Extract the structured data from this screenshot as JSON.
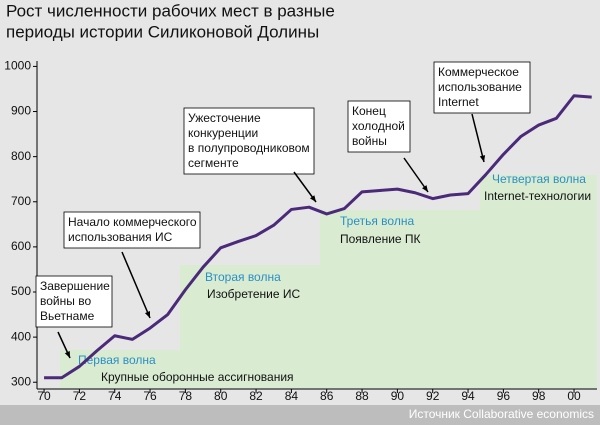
{
  "chart_data": {
    "type": "line",
    "title": [
      "Рост численности рабочих мест в разные",
      "периоды истории Силиконовой Долины"
    ],
    "x": [
      1970,
      1971,
      1972,
      1973,
      1974,
      1975,
      1976,
      1977,
      1978,
      1979,
      1980,
      1981,
      1982,
      1983,
      1984,
      1985,
      1986,
      1987,
      1988,
      1989,
      1990,
      1991,
      1992,
      1993,
      1994,
      1995,
      1996,
      1997,
      1998,
      1999,
      2000,
      2001
    ],
    "series": [
      {
        "color": "#4b2a7a",
        "values": [
          310,
          310,
          335,
          370,
          403,
          395,
          420,
          450,
          505,
          555,
          598,
          612,
          625,
          648,
          683,
          688,
          673,
          685,
          722,
          725,
          728,
          720,
          707,
          715,
          718,
          760,
          805,
          845,
          870,
          885,
          935,
          932
        ]
      }
    ],
    "xlim": [
      1969.6,
      2001.3
    ],
    "ylim": [
      285,
      1012
    ],
    "xticks": [
      {
        "value": 1970,
        "label": "70"
      },
      {
        "value": 1972,
        "label": "72"
      },
      {
        "value": 1974,
        "label": "74"
      },
      {
        "value": 1976,
        "label": "76"
      },
      {
        "value": 1978,
        "label": "78"
      },
      {
        "value": 1980,
        "label": "80"
      },
      {
        "value": 1982,
        "label": "82"
      },
      {
        "value": 1984,
        "label": "84"
      },
      {
        "value": 1986,
        "label": "86"
      },
      {
        "value": 1988,
        "label": "88"
      },
      {
        "value": 1990,
        "label": "90"
      },
      {
        "value": 1992,
        "label": "92"
      },
      {
        "value": 1994,
        "label": "94"
      },
      {
        "value": 1996,
        "label": "96"
      },
      {
        "value": 1998,
        "label": "98"
      },
      {
        "value": 2000,
        "label": "00"
      }
    ],
    "yticks": [
      300,
      400,
      500,
      600,
      700,
      800,
      900,
      1000
    ],
    "annotations": [
      {
        "lines": [
          "Завершение",
          "войны во",
          "Вьетнаме"
        ]
      },
      {
        "lines": [
          "Начало коммерческого",
          "использования ИС"
        ]
      },
      {
        "lines": [
          "Ужесточение",
          "конкуренции",
          "в полупроводниковом",
          "сегменте"
        ]
      },
      {
        "lines": [
          "Конец",
          "холодной",
          "войны"
        ]
      },
      {
        "lines": [
          "Коммерческое",
          "использование",
          "Internet"
        ]
      }
    ],
    "waves": [
      {
        "name": "Первая волна",
        "description": "Крупные оборонные ассигнования"
      },
      {
        "name": "Вторая волна",
        "description": "Изобретение ИС"
      },
      {
        "name": "Третья волна",
        "description": "Появление ПК"
      },
      {
        "name": "Четвертая волна",
        "description": "Internet-технологии"
      }
    ],
    "source": "Источник Collaborative economics"
  }
}
